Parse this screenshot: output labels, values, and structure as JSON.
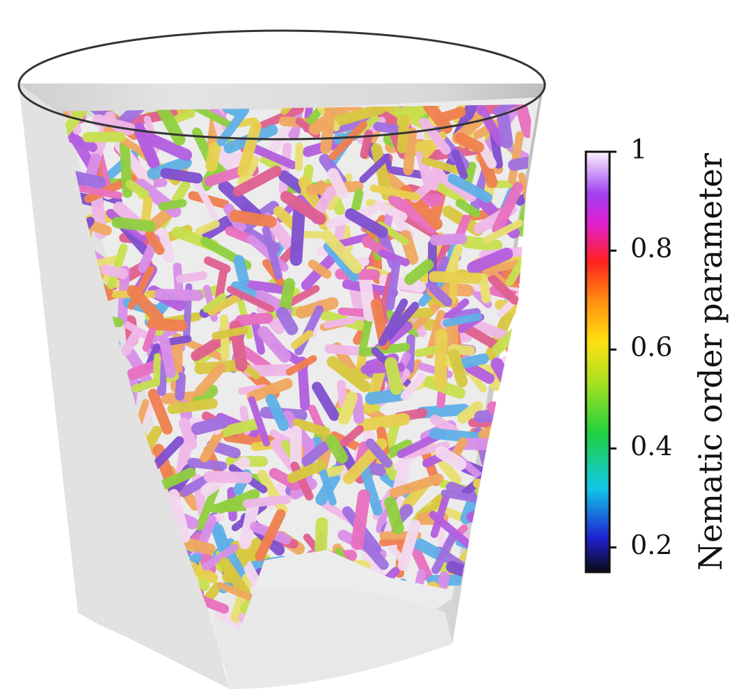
{
  "chart_data": {
    "type": "colorbar",
    "label": "Nematic order parameter",
    "clim": [
      0.15,
      1
    ],
    "ticks": [
      0.2,
      0.4,
      0.6,
      0.8,
      1
    ]
  }
}
